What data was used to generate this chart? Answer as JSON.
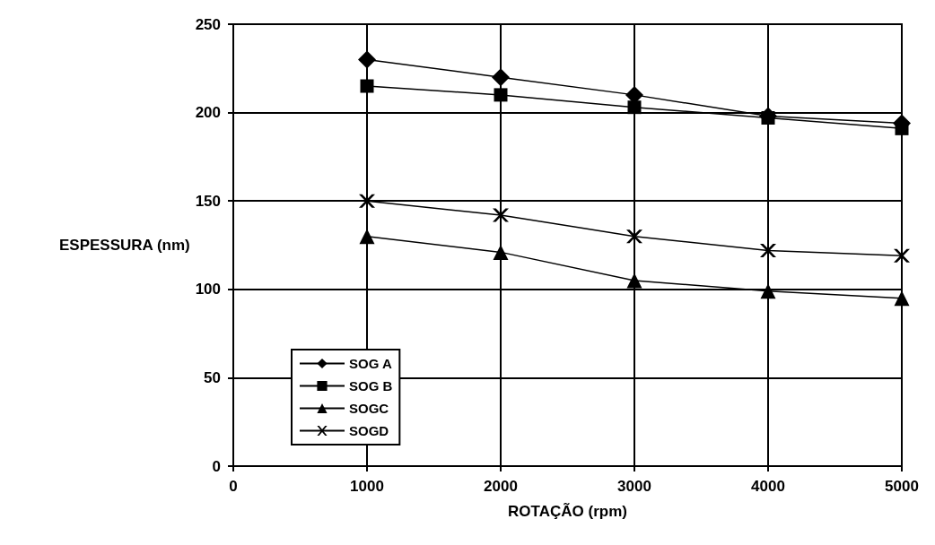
{
  "chart_data": {
    "type": "line",
    "xlabel": "ROTAÇÃO (rpm)",
    "ylabel": "ESPESSURA (nm)",
    "x": [
      1000,
      2000,
      3000,
      4000,
      5000
    ],
    "series": [
      {
        "name": "SOG A",
        "color": "#000000",
        "marker": "diamond",
        "values": [
          230,
          220,
          210,
          198,
          194
        ]
      },
      {
        "name": "SOG B",
        "color": "#000000",
        "marker": "square",
        "values": [
          215,
          210,
          203,
          197,
          191
        ]
      },
      {
        "name": "SOGC",
        "color": "#000000",
        "marker": "triangle",
        "values": [
          130,
          121,
          105,
          99,
          95
        ]
      },
      {
        "name": "SOGD",
        "color": "#000000",
        "marker": "cross",
        "values": [
          150,
          142,
          130,
          122,
          119
        ]
      }
    ],
    "xlim": [
      0,
      5000
    ],
    "xticks": [
      0,
      1000,
      2000,
      3000,
      4000,
      5000
    ],
    "ylim": [
      0,
      250
    ],
    "yticks": [
      0,
      50,
      100,
      150,
      200,
      250
    ],
    "grid": true,
    "legend": "bottom left",
    "line_style": "solid"
  }
}
